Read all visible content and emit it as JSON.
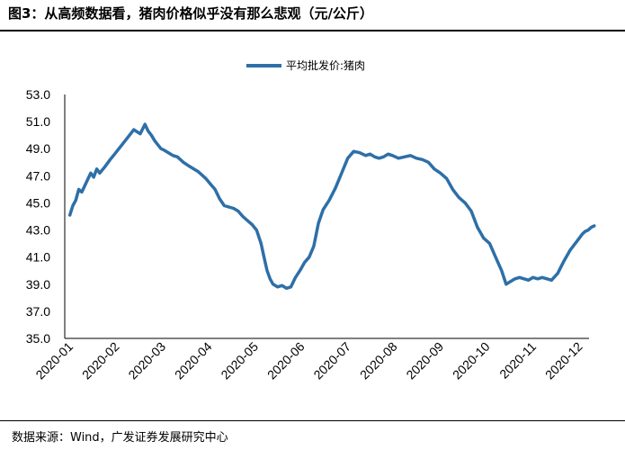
{
  "title": "图3：从高频数据看，猪肉价格似乎没有那么悲观（元/公斤）",
  "source": "数据来源：Wind，广发证券发展研究中心",
  "chart_data": {
    "type": "line",
    "title": "",
    "xlabel": "",
    "ylabel": "",
    "ylim": [
      35.0,
      53.0
    ],
    "y_ticks": [
      "35.0",
      "37.0",
      "39.0",
      "41.0",
      "43.0",
      "45.0",
      "47.0",
      "49.0",
      "51.0",
      "53.0"
    ],
    "x_ticks": [
      "2020-01",
      "2020-02",
      "2020-03",
      "2020-04",
      "2020-05",
      "2020-06",
      "2020-07",
      "2020-08",
      "2020-09",
      "2020-10",
      "2020-11",
      "2020-12"
    ],
    "grid": false,
    "legend_position": "top-center",
    "series": [
      {
        "name": "平均批发价:猪肉",
        "color": "#2e6fa7",
        "x": [
          "2020-01-02",
          "2020-01-04",
          "2020-01-06",
          "2020-01-08",
          "2020-01-10",
          "2020-01-13",
          "2020-01-16",
          "2020-01-18",
          "2020-01-20",
          "2020-01-22",
          "2020-01-25",
          "2020-01-27",
          "2020-01-29",
          "2020-02-01",
          "2020-02-05",
          "2020-02-09",
          "2020-02-13",
          "2020-02-17",
          "2020-02-20",
          "2020-02-22",
          "2020-02-24",
          "2020-02-26",
          "2020-02-28",
          "2020-03-01",
          "2020-03-03",
          "2020-03-06",
          "2020-03-09",
          "2020-03-12",
          "2020-03-16",
          "2020-03-20",
          "2020-03-23",
          "2020-03-26",
          "2020-03-28",
          "2020-03-31",
          "2020-04-03",
          "2020-04-06",
          "2020-04-09",
          "2020-04-12",
          "2020-04-15",
          "2020-04-18",
          "2020-04-21",
          "2020-04-24",
          "2020-04-27",
          "2020-04-30",
          "2020-05-03",
          "2020-05-06",
          "2020-05-08",
          "2020-05-10",
          "2020-05-12",
          "2020-05-14",
          "2020-05-17",
          "2020-05-20",
          "2020-05-23",
          "2020-05-26",
          "2020-05-29",
          "2020-06-01",
          "2020-06-04",
          "2020-06-07",
          "2020-06-10",
          "2020-06-13",
          "2020-06-16",
          "2020-06-20",
          "2020-06-24",
          "2020-06-28",
          "2020-07-02",
          "2020-07-06",
          "2020-07-10",
          "2020-07-14",
          "2020-07-17",
          "2020-07-20",
          "2020-07-23",
          "2020-07-26",
          "2020-07-29",
          "2020-08-01",
          "2020-08-05",
          "2020-08-09",
          "2020-08-13",
          "2020-08-17",
          "2020-08-21",
          "2020-08-25",
          "2020-08-29",
          "2020-09-02",
          "2020-09-06",
          "2020-09-10",
          "2020-09-14",
          "2020-09-18",
          "2020-09-22",
          "2020-09-26",
          "2020-09-30",
          "2020-10-04",
          "2020-10-08",
          "2020-10-12",
          "2020-10-15",
          "2020-10-18",
          "2020-10-21",
          "2020-10-24",
          "2020-10-27",
          "2020-10-30",
          "2020-11-02",
          "2020-11-05",
          "2020-11-08",
          "2020-11-11",
          "2020-11-14",
          "2020-11-18",
          "2020-11-22",
          "2020-11-26",
          "2020-11-30",
          "2020-12-02",
          "2020-12-04",
          "2020-12-06",
          "2020-12-08",
          "2020-12-10",
          "2020-12-12"
        ],
        "values": [
          44.1,
          44.8,
          45.2,
          46.0,
          45.8,
          46.5,
          47.2,
          46.9,
          47.5,
          47.2,
          47.6,
          47.9,
          48.2,
          48.6,
          49.2,
          49.8,
          50.4,
          50.1,
          50.8,
          50.3,
          50.0,
          49.6,
          49.3,
          49.0,
          48.9,
          48.7,
          48.5,
          48.4,
          48.0,
          47.7,
          47.5,
          47.3,
          47.1,
          46.8,
          46.4,
          46.0,
          45.3,
          44.8,
          44.7,
          44.6,
          44.4,
          44.0,
          43.7,
          43.4,
          43.0,
          42.0,
          41.0,
          40.0,
          39.4,
          39.0,
          38.8,
          38.9,
          38.7,
          38.8,
          39.5,
          40.0,
          40.6,
          41.0,
          41.8,
          43.5,
          44.5,
          45.2,
          46.1,
          47.2,
          48.3,
          48.8,
          48.7,
          48.5,
          48.6,
          48.4,
          48.3,
          48.4,
          48.6,
          48.5,
          48.3,
          48.4,
          48.5,
          48.3,
          48.2,
          48.0,
          47.5,
          47.2,
          46.8,
          46.0,
          45.4,
          45.0,
          44.4,
          43.2,
          42.4,
          42.0,
          41.0,
          40.0,
          39.0,
          39.2,
          39.4,
          39.5,
          39.4,
          39.3,
          39.5,
          39.4,
          39.5,
          39.4,
          39.3,
          39.8,
          40.7,
          41.5,
          42.1,
          42.4,
          42.7,
          42.9,
          43.0,
          43.2,
          43.3
        ]
      }
    ]
  }
}
